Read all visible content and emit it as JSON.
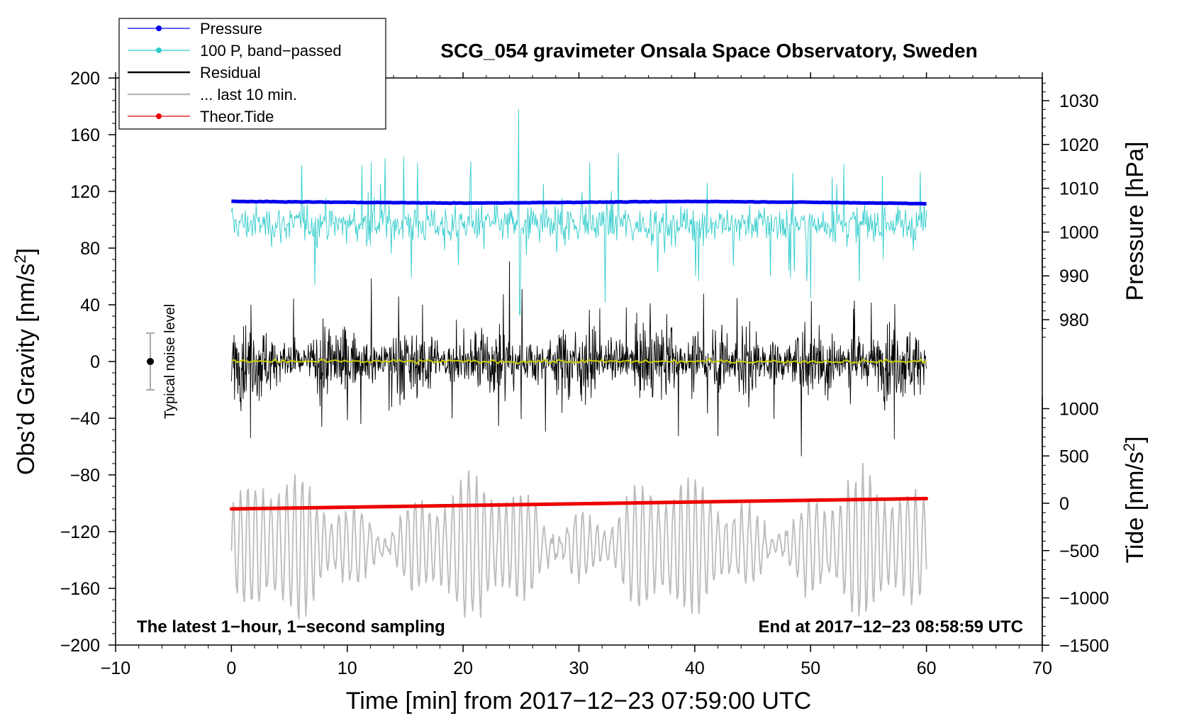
{
  "chart_data": {
    "type": "line",
    "title": "SCG_054 gravimeter Onsala Space Observatory, Sweden",
    "xlabel": "Time [min] from 2017−12−23 07:59:00 UTC",
    "ylabel_left": "Obs’d Gravity [nm/s",
    "ylabel_left_sup": "2",
    "ylabel_left_end": "]",
    "ylabel_right_pressure": "Pressure [hPa]",
    "ylabel_right_tide": "Tide [nm/s",
    "ylabel_right_tide_sup": "2",
    "ylabel_right_tide_end": "]",
    "xlim": [
      -10,
      70
    ],
    "ylim_left": [
      -200,
      200
    ],
    "pressure_range": [
      975,
      1035
    ],
    "tide_range": [
      -1500,
      1500
    ],
    "x_ticks": [
      "−10",
      "0",
      "10",
      "20",
      "30",
      "40",
      "50",
      "60",
      "70"
    ],
    "y_ticks_left": [
      "200",
      "160",
      "120",
      "80",
      "40",
      "0",
      "−40",
      "−80",
      "−120",
      "−160",
      "−200"
    ],
    "y_ticks_pressure": [
      "1030",
      "1020",
      "1010",
      "1000",
      "990",
      "980"
    ],
    "y_ticks_tide": [
      "1000",
      "500",
      "0",
      "−500",
      "−1000",
      "−1500"
    ],
    "legend": [
      {
        "name": "Pressure",
        "color": "#0000ee",
        "marker": true
      },
      {
        "name": "100 P, band−passed",
        "color": "#33cccc",
        "marker": true
      },
      {
        "name": "Residual",
        "color": "#000000",
        "marker": false
      },
      {
        "name": "... last 10 min.",
        "color": "#bbbbbb",
        "marker": false
      },
      {
        "name": "Theor.Tide",
        "color": "#ee0000",
        "marker": true
      }
    ],
    "series": [
      {
        "name": "Pressure",
        "axis": "pressure",
        "x": [
          0,
          10,
          20,
          30,
          40,
          50,
          60
        ],
        "values": [
          1007,
          1006.8,
          1006.6,
          1006.8,
          1007,
          1006.8,
          1006.5
        ]
      },
      {
        "name": "100 P, band−passed",
        "axis": "left",
        "x_range": [
          0,
          60
        ],
        "center": 97,
        "spread": 40
      },
      {
        "name": "Residual",
        "axis": "left",
        "x_range": [
          0,
          60
        ],
        "center": 0,
        "spread": 45
      },
      {
        "name": "Residual smoothed",
        "axis": "left",
        "x_range": [
          0,
          60
        ],
        "center": 0,
        "color": "#cccc00"
      },
      {
        "name": "... last 10 min.",
        "axis": "left",
        "x_range": [
          0,
          60
        ],
        "center": -130,
        "spread": 45
      },
      {
        "name": "Theor.Tide",
        "axis": "tide",
        "x": [
          0,
          60
        ],
        "values": [
          -60,
          50
        ]
      }
    ],
    "noise_marker": {
      "label": "Typical noise level",
      "x": -7,
      "center": 0,
      "low": -20,
      "high": 20
    },
    "annotation_left": "The latest 1−hour, 1−second sampling",
    "annotation_right": "End at 2017−12−23 08:58:59 UTC"
  }
}
